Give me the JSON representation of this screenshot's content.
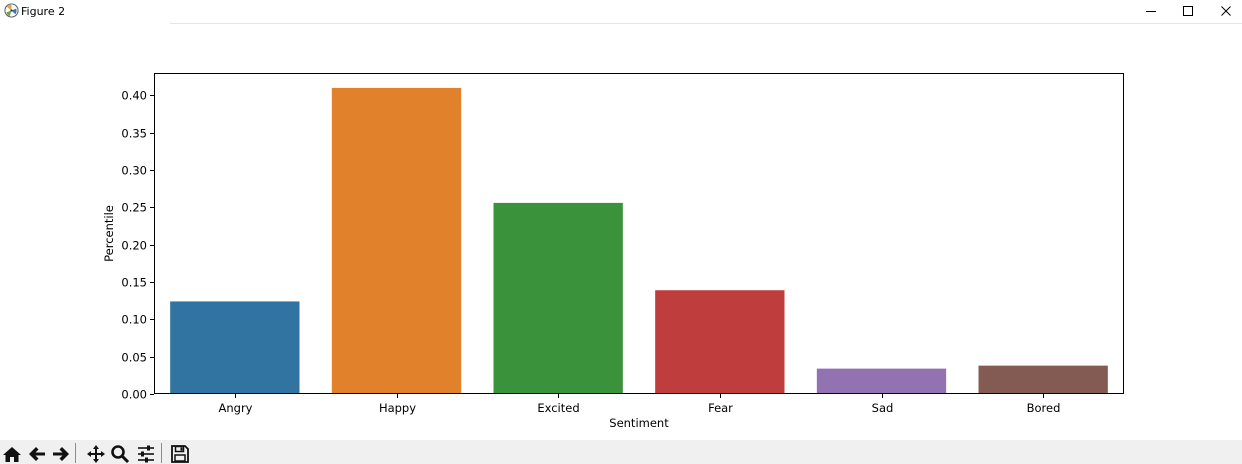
{
  "window": {
    "title": "Figure 2"
  },
  "toolbar": {
    "buttons": [
      {
        "name": "home-button",
        "icon": "home-icon"
      },
      {
        "name": "back-button",
        "icon": "arrow-left-icon"
      },
      {
        "name": "forward-button",
        "icon": "arrow-right-icon"
      },
      {
        "name": "pan-button",
        "icon": "move-icon"
      },
      {
        "name": "zoom-button",
        "icon": "magnifier-icon"
      },
      {
        "name": "configure-subplots-button",
        "icon": "sliders-icon"
      },
      {
        "name": "save-button",
        "icon": "floppy-disk-icon"
      }
    ]
  },
  "chart_data": {
    "type": "bar",
    "categories": [
      "Angry",
      "Happy",
      "Excited",
      "Fear",
      "Sad",
      "Bored"
    ],
    "values": [
      0.124,
      0.41,
      0.256,
      0.139,
      0.034,
      0.038
    ],
    "colors": [
      "#3274a1",
      "#e1812c",
      "#3a923a",
      "#c03d3e",
      "#9372b2",
      "#845b53"
    ],
    "title": "",
    "xlabel": "Sentiment",
    "ylabel": "Percentile",
    "ylim": [
      0,
      0.43
    ],
    "yticks": [
      0.0,
      0.05,
      0.1,
      0.15,
      0.2,
      0.25,
      0.3,
      0.35,
      0.4
    ],
    "ytick_labels": [
      "0.00",
      "0.05",
      "0.10",
      "0.15",
      "0.20",
      "0.25",
      "0.30",
      "0.35",
      "0.40"
    ],
    "grid": false,
    "legend": "none"
  }
}
